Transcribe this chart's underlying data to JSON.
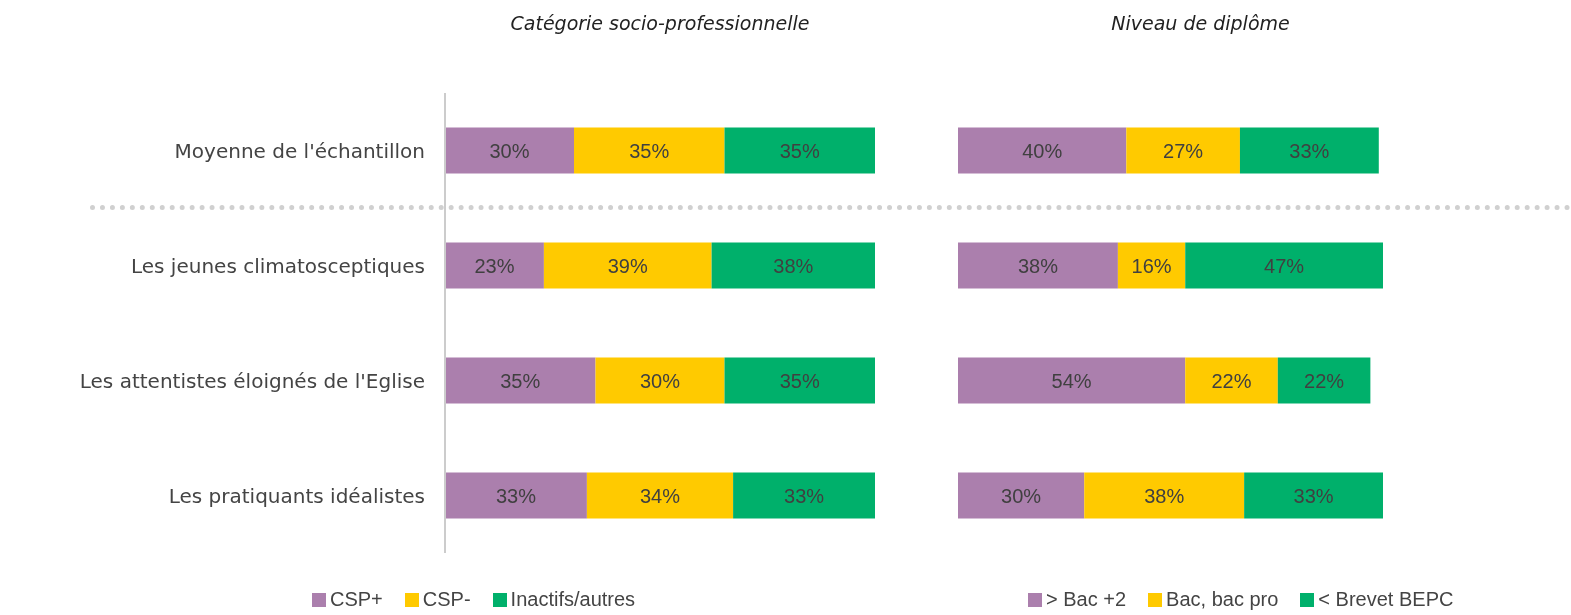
{
  "chart_data": [
    {
      "type": "bar",
      "title": "Catégorie socio-professionnelle",
      "orientation": "horizontal",
      "stacked": true,
      "legend": "bottom",
      "tick_labels": "y",
      "categories": [
        "Moyenne de l'échantillon",
        "Les jeunes climatosceptiques",
        "Les attentistes éloignés de l'Eglise",
        "Les pratiquants idéalistes"
      ],
      "series": [
        {
          "name": "CSP+",
          "color": "#ab7fad",
          "values": [
            30,
            23,
            35,
            33
          ],
          "value_labels": [
            "30%",
            "23%",
            "35%",
            "33%"
          ]
        },
        {
          "name": "CSP-",
          "color": "#ffca00",
          "values": [
            35,
            39,
            30,
            34
          ],
          "value_labels": [
            "35%",
            "39%",
            "30%",
            "34%"
          ]
        },
        {
          "name": "Inactifs/autres",
          "color": "#00b06b",
          "values": [
            35,
            38,
            35,
            33
          ],
          "value_labels": [
            "35%",
            "38%",
            "35%",
            "33%"
          ]
        }
      ]
    },
    {
      "type": "bar",
      "title": "Niveau de diplôme",
      "orientation": "horizontal",
      "stacked": true,
      "legend": "bottom",
      "tick_labels": false,
      "categories": [
        null,
        null,
        null,
        null
      ],
      "series": [
        {
          "name": "> Bac +2",
          "color": "#ab7fad",
          "values": [
            40,
            38,
            54,
            30
          ],
          "value_labels": [
            "40%",
            "38%",
            "54%",
            "30%"
          ]
        },
        {
          "name": "Bac, bac pro",
          "color": "#ffca00",
          "values": [
            27,
            16,
            22,
            38
          ],
          "value_labels": [
            "27%",
            "16%",
            "22%",
            "38%"
          ]
        },
        {
          "name": "< Brevet BEPC",
          "color": "#00b06b",
          "values": [
            33,
            47,
            22,
            33
          ],
          "value_labels": [
            "33%",
            "47%",
            "22%",
            "33%"
          ]
        }
      ]
    }
  ]
}
